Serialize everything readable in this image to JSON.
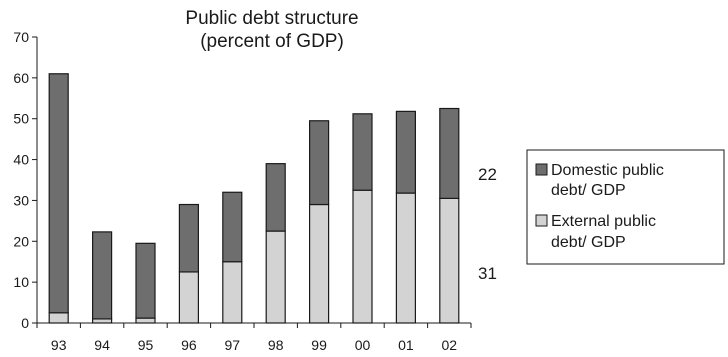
{
  "chart_data": {
    "type": "bar",
    "stacked": true,
    "title_lines": [
      "Public debt structure",
      "(percent of GDP)"
    ],
    "xlabel": "",
    "ylabel": "",
    "categories": [
      "93",
      "94",
      "95",
      "96",
      "97",
      "98",
      "99",
      "00",
      "01",
      "02"
    ],
    "series": [
      {
        "name": "External public debt/ GDP",
        "legend_lines": [
          "External public",
          "debt/ GDP"
        ],
        "color": "#d3d3d3",
        "values": [
          2.5,
          1.0,
          1.2,
          12.5,
          15.0,
          22.5,
          29.0,
          32.5,
          31.8,
          30.5
        ]
      },
      {
        "name": "Domestic public debt/ GDP",
        "legend_lines": [
          "Domestic public",
          "debt/ GDP"
        ],
        "color": "#6e6e6e",
        "values": [
          58.5,
          21.3,
          18.3,
          16.5,
          17.0,
          16.5,
          20.5,
          18.7,
          20.0,
          22.0
        ]
      }
    ],
    "ylim": [
      0,
      70
    ],
    "yticks": [
      "0",
      "10",
      "20",
      "30",
      "40",
      "50",
      "60",
      "70"
    ],
    "annotations": [
      "22",
      "31"
    ],
    "legend_position": "right",
    "grid": false
  }
}
